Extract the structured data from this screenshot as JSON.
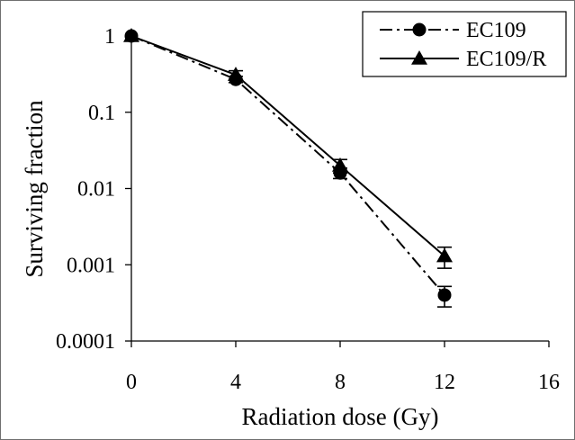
{
  "chart_data": {
    "type": "line",
    "xlabel": "Radiation dose (Gy)",
    "ylabel": "Surviving fraction",
    "xlim": [
      0,
      16
    ],
    "ylim": [
      0.0001,
      1
    ],
    "yscale": "log",
    "x_ticks": [
      0,
      4,
      8,
      12,
      16
    ],
    "x_tick_labels": [
      "0",
      "4",
      "8",
      "12",
      "16"
    ],
    "y_ticks": [
      1,
      0.1,
      0.01,
      0.001,
      0.0001
    ],
    "y_tick_labels": [
      "1",
      "0.1",
      "0.01",
      "0.001",
      "0.0001"
    ],
    "grid": false,
    "legend_position": "top-right",
    "series": [
      {
        "name": "EC109",
        "line_style": "dash-dot",
        "marker": "circle",
        "x": [
          0,
          4,
          8,
          12
        ],
        "y": [
          1,
          0.27,
          0.016,
          0.0004
        ],
        "err_low": [
          null,
          0.245,
          0.0135,
          0.00028
        ],
        "err_high": [
          null,
          0.295,
          0.0185,
          0.00052
        ]
      },
      {
        "name": "EC109/R",
        "line_style": "solid",
        "marker": "triangle",
        "x": [
          0,
          4,
          8,
          12
        ],
        "y": [
          1,
          0.31,
          0.02,
          0.0013
        ],
        "err_low": [
          null,
          0.27,
          0.016,
          0.0009
        ],
        "err_high": [
          null,
          0.35,
          0.024,
          0.0017
        ]
      }
    ]
  }
}
